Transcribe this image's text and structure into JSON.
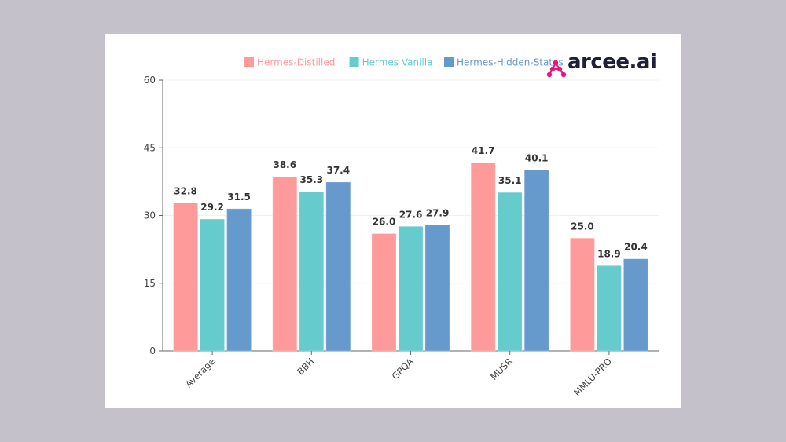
{
  "brand": {
    "name": "arcee.ai",
    "icon": "arcee-molecule-icon",
    "primary_color": "#e8157a",
    "text_color": "#1f1f3a"
  },
  "chart_data": {
    "type": "bar",
    "title": "",
    "xlabel": "",
    "ylabel": "",
    "categories": [
      "Average",
      "BBH",
      "GPQA",
      "MUSR",
      "MMLU-PRO"
    ],
    "series": [
      {
        "name": "Hermes-Distilled",
        "color": "#ff9a9a",
        "values": [
          32.8,
          38.6,
          26.0,
          41.7,
          25.0
        ]
      },
      {
        "name": "Hermes Vanilla",
        "color": "#65cbcd",
        "values": [
          29.2,
          35.3,
          27.6,
          35.1,
          18.9
        ]
      },
      {
        "name": "Hermes-Hidden-States",
        "color": "#6699cc",
        "values": [
          31.5,
          37.4,
          27.9,
          40.1,
          20.4
        ]
      }
    ],
    "ylim": [
      0,
      60
    ],
    "yticks": [
      0,
      15,
      30,
      45,
      60
    ],
    "grid": true,
    "legend_position": "top-right",
    "value_labels": true
  }
}
